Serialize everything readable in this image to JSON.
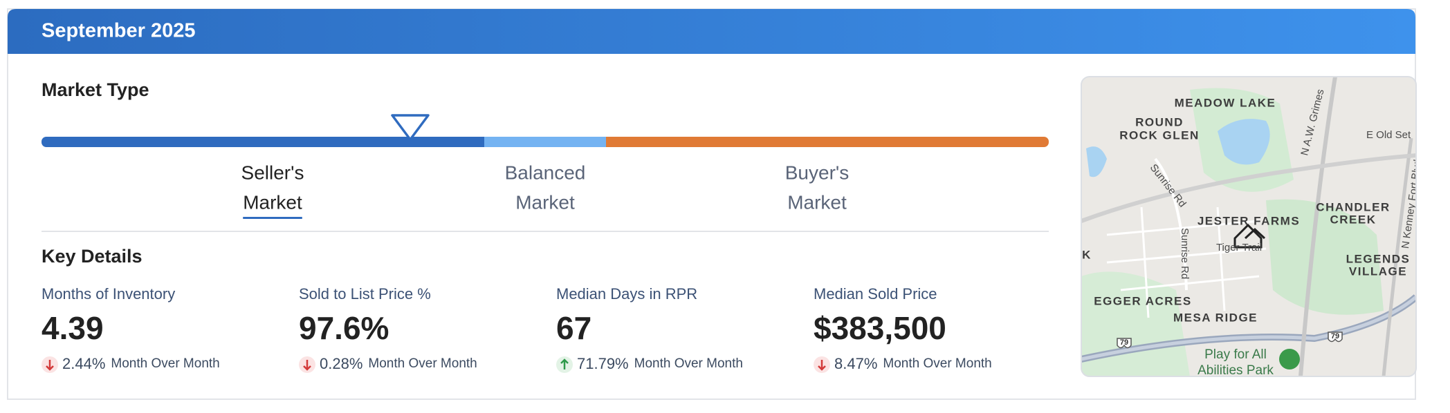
{
  "header": {
    "title": "September 2025"
  },
  "market_type": {
    "title": "Market Type",
    "segments": [
      {
        "line1": "Seller's",
        "line2": "Market",
        "color": "#2f6bbf",
        "active": true
      },
      {
        "line1": "Balanced",
        "line2": "Market",
        "color": "#74b3f2",
        "active": false
      },
      {
        "line1": "Buyer's",
        "line2": "Market",
        "color": "#e07a35",
        "active": false
      }
    ]
  },
  "key_details": {
    "title": "Key Details",
    "items": [
      {
        "label": "Months of Inventory",
        "value": "4.39",
        "change": "2.44%",
        "direction": "down",
        "period": "Month Over Month"
      },
      {
        "label": "Sold to List Price %",
        "value": "97.6%",
        "change": "0.28%",
        "direction": "down",
        "period": "Month Over Month"
      },
      {
        "label": "Median Days in RPR",
        "value": "67",
        "change": "71.79%",
        "direction": "up",
        "period": "Month Over Month"
      },
      {
        "label": "Median Sold Price",
        "value": "$383,500",
        "change": "8.47%",
        "direction": "down",
        "period": "Month Over Month"
      }
    ]
  },
  "map": {
    "labels": [
      "MEADOW LAKE",
      "ROUND",
      "ROCK GLEN",
      "CHANDLER",
      "CREEK",
      "JESTER FARMS",
      "Tiger Trail",
      "LEGENDS",
      "VILLAGE",
      "EGGER ACRES",
      "MESA RIDGE",
      "Play for All",
      "Abilities Park",
      "Sunrise Rd",
      "Sunrise Rd",
      "N A.W. Grimes",
      "E Old Set",
      "N Kenney Fort Blvd",
      "K",
      "79",
      "79"
    ]
  }
}
